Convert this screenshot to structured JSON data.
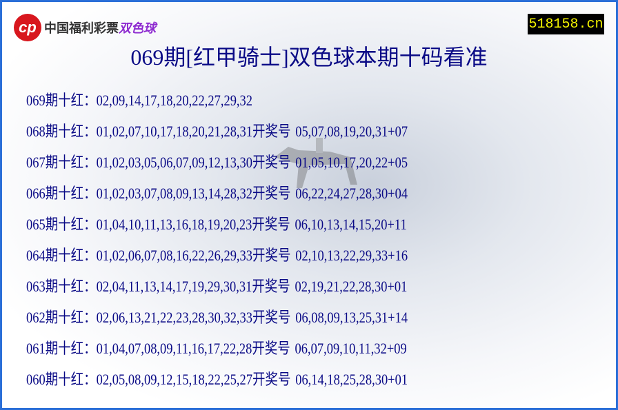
{
  "logo": {
    "text": "中国福利彩票",
    "sub": "双色球"
  },
  "site": "518158.cn",
  "title": "069期[红甲骑士]双色球本期十码看准",
  "rows": [
    {
      "label": "069期十红：",
      "picks": "02,09,14,17,18,20,22,27,29,32",
      "draw_label": "",
      "draw": ""
    },
    {
      "label": "068期十红：",
      "picks": "01,02,07,10,17,18,20,21,28,31",
      "draw_label": "开奖号",
      "draw": "05,07,08,19,20,31+07"
    },
    {
      "label": "067期十红：",
      "picks": "01,02,03,05,06,07,09,12,13,30",
      "draw_label": "开奖号",
      "draw": "01,05,10,17,20,22+05"
    },
    {
      "label": "066期十红：",
      "picks": "01,02,03,07,08,09,13,14,28,32",
      "draw_label": "开奖号",
      "draw": "06,22,24,27,28,30+04"
    },
    {
      "label": "065期十红：",
      "picks": "01,04,10,11,13,16,18,19,20,23",
      "draw_label": "开奖号",
      "draw": "06,10,13,14,15,20+11"
    },
    {
      "label": "064期十红：",
      "picks": "01,02,06,07,08,16,22,26,29,33",
      "draw_label": "开奖号",
      "draw": "02,10,13,22,29,33+16"
    },
    {
      "label": "063期十红：",
      "picks": "02,04,11,13,14,17,19,29,30,31",
      "draw_label": "开奖号",
      "draw": "02,19,21,22,28,30+01"
    },
    {
      "label": "062期十红：",
      "picks": "02,06,13,21,22,23,28,30,32,33",
      "draw_label": "开奖号",
      "draw": "06,08,09,13,25,31+14"
    },
    {
      "label": "061期十红：",
      "picks": "01,04,07,08,09,11,16,17,22,28",
      "draw_label": "开奖号",
      "draw": "06,07,09,10,11,32+09"
    },
    {
      "label": "060期十红：",
      "picks": "02,05,08,09,12,15,18,22,25,27",
      "draw_label": "开奖号",
      "draw": "06,14,18,25,28,30+01"
    }
  ]
}
